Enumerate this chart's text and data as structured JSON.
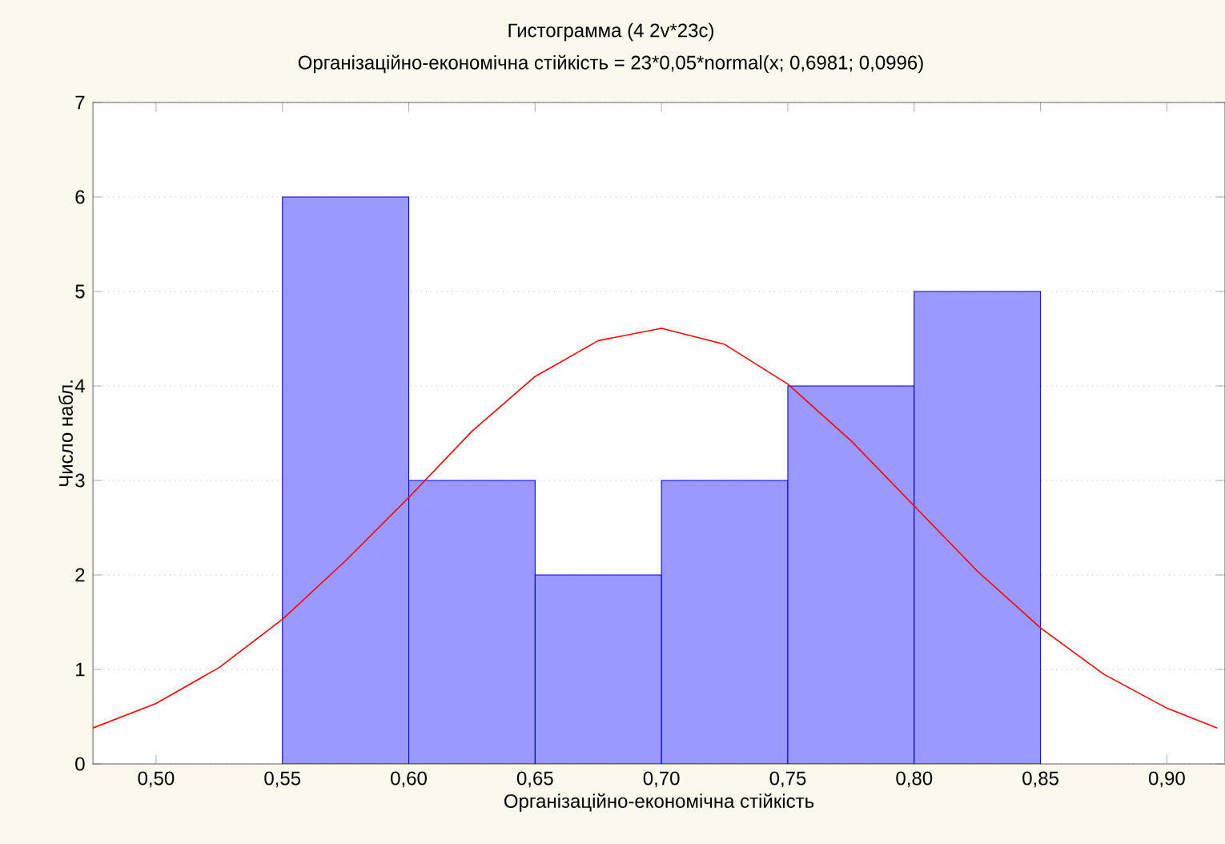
{
  "chart_data": {
    "type": "histogram",
    "title": "Гистограмма (4 2v*23c)",
    "subtitle": "Організаційно-економічна стійкість = 23*0,05*normal(x; 0,6981; 0,0996)",
    "xlabel": "Організаційно-економічна стійкість",
    "ylabel": "Число набл.",
    "bins": [
      0.55,
      0.6,
      0.65,
      0.7,
      0.75,
      0.8,
      0.85
    ],
    "values": [
      6,
      3,
      2,
      3,
      4,
      5
    ],
    "color": "#0000ff",
    "series": [
      {
        "type": "line",
        "color": "#ff0000",
        "x": [
          0.475,
          0.5,
          0.525,
          0.55,
          0.575,
          0.6,
          0.625,
          0.65,
          0.675,
          0.7,
          0.725,
          0.75,
          0.775,
          0.8,
          0.825,
          0.85,
          0.875,
          0.9,
          0.92
        ],
        "values": [
          0.38,
          0.64,
          1.02,
          1.53,
          2.15,
          2.82,
          3.52,
          4.1,
          4.48,
          4.61,
          4.44,
          4.02,
          3.42,
          2.73,
          2.04,
          1.44,
          0.95,
          0.59,
          0.38
        ]
      }
    ],
    "xlim": [
      0.475,
      0.923
    ],
    "xticks": [
      {
        "value": 0.5,
        "label": "0,50"
      },
      {
        "value": 0.55,
        "label": "0,55"
      },
      {
        "value": 0.6,
        "label": "0,60"
      },
      {
        "value": 0.65,
        "label": "0,65"
      },
      {
        "value": 0.7,
        "label": "0,70"
      },
      {
        "value": 0.75,
        "label": "0,75"
      },
      {
        "value": 0.8,
        "label": "0,80"
      },
      {
        "value": 0.85,
        "label": "0,85"
      },
      {
        "value": 0.9,
        "label": "0,90"
      }
    ],
    "ylim": [
      0,
      7
    ],
    "yticks": [
      0,
      1,
      2,
      3,
      4,
      5,
      6,
      7
    ],
    "grid": "y",
    "marker": "none",
    "line_style": "solid"
  }
}
